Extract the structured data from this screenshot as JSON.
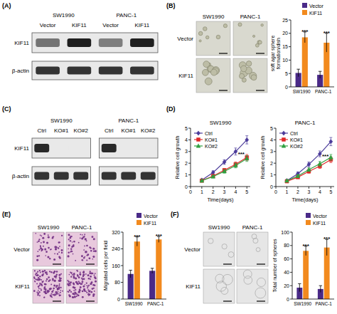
{
  "panel_labels": [
    "(A)",
    "(B)",
    "(C)",
    "(D)",
    "(E)",
    "(F)"
  ],
  "blots": [
    {
      "groups": [
        {
          "name": "SW1990",
          "lanes": [
            "Vector",
            "KIF11"
          ]
        },
        {
          "name": "PANC-1",
          "lanes": [
            "Vector",
            "KIF11"
          ]
        }
      ],
      "rows": [
        {
          "label": "KIF11",
          "intensity": [
            0.55,
            0.95,
            0.5,
            0.95
          ]
        },
        {
          "label": "β-actin",
          "intensity": [
            0.85,
            0.85,
            0.85,
            0.85
          ]
        }
      ]
    },
    {
      "groups": [
        {
          "name": "SW1990",
          "lanes": [
            "Ctrl",
            "KO#1",
            "KO#2"
          ]
        },
        {
          "name": "PANC-1",
          "lanes": [
            "Ctrl",
            "KO#1",
            "KO#2"
          ]
        }
      ],
      "rows": [
        {
          "label": "KIF11",
          "intensity": [
            0.9,
            0,
            0,
            0.9,
            0,
            0
          ]
        },
        {
          "label": "β-actin",
          "intensity": [
            0.85,
            0.85,
            0.85,
            0.85,
            0.85,
            0.85
          ]
        }
      ]
    }
  ],
  "micrographs": [
    {
      "columns": [
        "SW1990",
        "PANC-1"
      ],
      "rows": [
        "Vector",
        "KIF11"
      ]
    },
    {
      "columns": [
        "SW1990",
        "PANC-1"
      ],
      "rows": [
        "Vector",
        "KIF11"
      ]
    },
    {
      "columns": [
        "SW1990",
        "PANC-1"
      ],
      "rows": [
        "Vector",
        "KIF11"
      ]
    }
  ],
  "chart_data": [
    {
      "type": "bar",
      "categories": [
        "SW1990",
        "PANC-1"
      ],
      "ylabel": "soft agar sphere formation/dish",
      "ylim": [
        0,
        25
      ],
      "yticks": [
        0,
        5,
        10,
        15,
        20,
        25
      ],
      "legend": "top",
      "series": [
        {
          "name": "Vector",
          "color": "#4a2a88",
          "values": [
            5.2,
            4.5
          ],
          "errors": [
            1.4,
            1.3
          ]
        },
        {
          "name": "KIF11",
          "color": "#f28a1e",
          "values": [
            18.5,
            16.5
          ],
          "errors": [
            2.0,
            3.5
          ]
        }
      ],
      "annotations": [
        "***",
        "***"
      ]
    },
    {
      "type": "line",
      "title": "SW1990",
      "xlabel": "Time(days)",
      "ylabel": "Relative cell growth",
      "x": [
        1,
        2,
        3,
        4,
        5
      ],
      "xlim": [
        0,
        5.3
      ],
      "xticks": [
        0,
        1,
        2,
        3,
        4,
        5
      ],
      "ylim": [
        0,
        5
      ],
      "yticks": [
        0,
        1,
        2,
        3,
        4,
        5
      ],
      "legend": "top-left",
      "series": [
        {
          "name": "Ctrl",
          "color": "#4b3b9a",
          "marker": "diamond",
          "values": [
            0.55,
            1.2,
            2.1,
            3.0,
            4.0
          ],
          "errors": [
            0.1,
            0.15,
            0.2,
            0.3,
            0.35
          ]
        },
        {
          "name": "KO#1",
          "color": "#e02828",
          "marker": "square",
          "values": [
            0.5,
            0.9,
            1.4,
            1.9,
            2.5
          ],
          "errors": [
            0.05,
            0.1,
            0.15,
            0.2,
            0.25
          ]
        },
        {
          "name": "KO#2",
          "color": "#2fa040",
          "marker": "triangle",
          "values": [
            0.5,
            0.85,
            1.3,
            1.8,
            2.4
          ],
          "errors": [
            0.05,
            0.1,
            0.15,
            0.2,
            0.25
          ]
        }
      ],
      "annotations": [
        "***"
      ]
    },
    {
      "type": "line",
      "title": "PANC-1",
      "xlabel": "Time(days)",
      "ylabel": "Relative cell growth",
      "x": [
        1,
        2,
        3,
        4,
        5
      ],
      "xlim": [
        0,
        5.3
      ],
      "xticks": [
        0,
        1,
        2,
        3,
        4,
        5
      ],
      "ylim": [
        0,
        5
      ],
      "yticks": [
        0,
        1,
        2,
        3,
        4,
        5
      ],
      "legend": "top-left",
      "series": [
        {
          "name": "Ctrl",
          "color": "#4b3b9a",
          "marker": "diamond",
          "values": [
            0.5,
            1.1,
            1.9,
            2.8,
            3.85
          ],
          "errors": [
            0.1,
            0.15,
            0.2,
            0.25,
            0.35
          ]
        },
        {
          "name": "KO#1",
          "color": "#e02828",
          "marker": "square",
          "values": [
            0.45,
            0.8,
            1.3,
            1.75,
            2.3
          ],
          "errors": [
            0.05,
            0.1,
            0.15,
            0.2,
            0.25
          ]
        },
        {
          "name": "KO#2",
          "color": "#2fa040",
          "marker": "triangle",
          "values": [
            0.5,
            0.9,
            1.45,
            1.95,
            2.5
          ],
          "errors": [
            0.05,
            0.1,
            0.15,
            0.2,
            0.25
          ]
        }
      ],
      "annotations": [
        "***"
      ]
    },
    {
      "type": "bar",
      "categories": [
        "SW1990",
        "PANC-1"
      ],
      "ylabel": "Migrated cells per field",
      "ylim": [
        0,
        320
      ],
      "yticks": [
        0,
        80,
        160,
        240,
        320
      ],
      "legend": "top",
      "series": [
        {
          "name": "Vector",
          "color": "#4a2a88",
          "values": [
            120,
            135
          ],
          "errors": [
            18,
            12
          ]
        },
        {
          "name": "KIF11",
          "color": "#f28a1e",
          "values": [
            275,
            285
          ],
          "errors": [
            22,
            14
          ]
        }
      ],
      "annotations": [
        "***",
        "***"
      ]
    },
    {
      "type": "bar",
      "categories": [
        "SW1990",
        "PANC-1"
      ],
      "ylabel": "Total number of spheres",
      "ylim": [
        0,
        100
      ],
      "yticks": [
        0,
        20,
        40,
        60,
        80,
        100
      ],
      "legend": "top",
      "series": [
        {
          "name": "Vector",
          "color": "#4a2a88",
          "values": [
            17,
            15
          ],
          "errors": [
            6,
            5
          ]
        },
        {
          "name": "KIF11",
          "color": "#f28a1e",
          "values": [
            72,
            77
          ],
          "errors": [
            7,
            12
          ]
        }
      ],
      "annotations": [
        "***",
        "***"
      ]
    }
  ]
}
